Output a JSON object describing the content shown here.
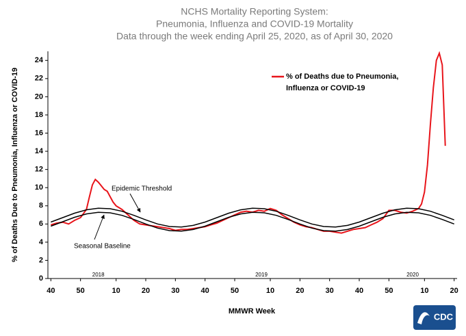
{
  "chart_data": {
    "type": "line",
    "title": [
      "NCHS Mortality Reporting System:",
      "Pneumonia,  Influenza and COVID-19 Mortality",
      "Data through the week ending April 25, 2020, as of April 30, 2020"
    ],
    "xlabel": "MMWR Week",
    "ylabel": "% of Deaths Due to Pneumonia, Influenza or  COVID-19",
    "xlim": [
      -1,
      137
    ],
    "ylim": [
      0,
      25
    ],
    "yticks": [
      0,
      2,
      4,
      6,
      8,
      10,
      12,
      14,
      16,
      18,
      20,
      22,
      24
    ],
    "xticks": [
      {
        "value": 0,
        "label": "40"
      },
      {
        "value": 10,
        "label": "50"
      },
      {
        "value": 22,
        "label": "10"
      },
      {
        "value": 32,
        "label": "20"
      },
      {
        "value": 42,
        "label": "30"
      },
      {
        "value": 52,
        "label": "40"
      },
      {
        "value": 62,
        "label": "50"
      },
      {
        "value": 74,
        "label": "10"
      },
      {
        "value": 84,
        "label": "20"
      },
      {
        "value": 94,
        "label": "30"
      },
      {
        "value": 104,
        "label": "40"
      },
      {
        "value": 114,
        "label": "50"
      },
      {
        "value": 126,
        "label": "10"
      },
      {
        "value": 136,
        "label": "20"
      }
    ],
    "year_labels": [
      {
        "value": 16,
        "label": "2018"
      },
      {
        "value": 71,
        "label": "2019"
      },
      {
        "value": 122,
        "label": "2020"
      }
    ],
    "series": [
      {
        "name": "% of Deaths due to Pneumonia, Influenza or COVID-19",
        "legend_lines": [
          "% of Deaths due to Pneumonia,",
          "Influenza or COVID-19"
        ],
        "color": "#e8141a",
        "x": [
          0,
          2,
          4,
          6,
          8,
          10,
          12,
          13,
          14,
          15,
          16,
          17,
          18,
          19,
          20,
          21,
          22,
          24,
          26,
          28,
          30,
          32,
          34,
          36,
          38,
          40,
          42,
          44,
          46,
          48,
          50,
          52,
          54,
          56,
          58,
          60,
          62,
          64,
          66,
          68,
          70,
          72,
          74,
          76,
          78,
          80,
          82,
          84,
          86,
          88,
          90,
          92,
          94,
          96,
          98,
          100,
          102,
          104,
          106,
          108,
          110,
          112,
          114,
          116,
          118,
          120,
          122,
          124,
          125,
          126,
          127,
          128,
          129,
          130,
          131,
          132,
          133
        ],
        "values": [
          5.9,
          6.1,
          6.2,
          6.0,
          6.4,
          6.7,
          7.6,
          9.0,
          10.3,
          10.9,
          10.6,
          10.2,
          9.8,
          9.6,
          9.0,
          8.4,
          8.0,
          7.6,
          7.0,
          6.4,
          6.0,
          5.9,
          5.8,
          5.7,
          5.6,
          5.5,
          5.3,
          5.4,
          5.4,
          5.5,
          5.6,
          5.7,
          5.9,
          6.1,
          6.4,
          6.7,
          7.0,
          7.3,
          7.4,
          7.3,
          7.5,
          7.4,
          7.7,
          7.5,
          7.0,
          6.6,
          6.2,
          5.9,
          5.7,
          5.6,
          5.4,
          5.2,
          5.2,
          5.1,
          5.0,
          5.2,
          5.4,
          5.5,
          5.6,
          5.9,
          6.2,
          6.6,
          7.5,
          7.5,
          7.3,
          7.2,
          7.4,
          7.7,
          8.2,
          9.5,
          12.5,
          17,
          21,
          24.0,
          24.8,
          23.5,
          14.6
        ]
      },
      {
        "name": "Epidemic Threshold",
        "color": "#000000",
        "x": [
          0,
          4,
          8,
          12,
          16,
          20,
          24,
          28,
          32,
          36,
          40,
          44,
          48,
          52,
          56,
          60,
          64,
          68,
          72,
          76,
          80,
          84,
          88,
          92,
          96,
          100,
          104,
          108,
          112,
          116,
          120,
          124,
          128,
          132,
          136
        ],
        "values": [
          6.21,
          6.7,
          7.19,
          7.56,
          7.74,
          7.68,
          7.4,
          6.95,
          6.45,
          6.0,
          5.72,
          5.66,
          5.84,
          6.21,
          6.7,
          7.19,
          7.56,
          7.74,
          7.68,
          7.4,
          6.95,
          6.45,
          6.0,
          5.72,
          5.66,
          5.84,
          6.21,
          6.7,
          7.19,
          7.56,
          7.74,
          7.68,
          7.4,
          6.95,
          6.45
        ]
      },
      {
        "name": "Seasonal Baseline",
        "color": "#000000",
        "x": [
          0,
          4,
          8,
          12,
          16,
          20,
          24,
          28,
          32,
          36,
          40,
          44,
          48,
          52,
          56,
          60,
          64,
          68,
          72,
          76,
          80,
          84,
          88,
          92,
          96,
          100,
          104,
          108,
          112,
          116,
          120,
          124,
          128,
          132,
          136
        ],
        "values": [
          5.76,
          6.25,
          6.74,
          7.11,
          7.29,
          7.23,
          6.95,
          6.5,
          6.0,
          5.55,
          5.27,
          5.21,
          5.39,
          5.76,
          6.25,
          6.74,
          7.11,
          7.29,
          7.23,
          6.95,
          6.5,
          6.0,
          5.55,
          5.27,
          5.21,
          5.39,
          5.76,
          6.25,
          6.74,
          7.11,
          7.29,
          7.23,
          6.95,
          6.5,
          6.0
        ]
      }
    ]
  },
  "logo_text": "CDC"
}
